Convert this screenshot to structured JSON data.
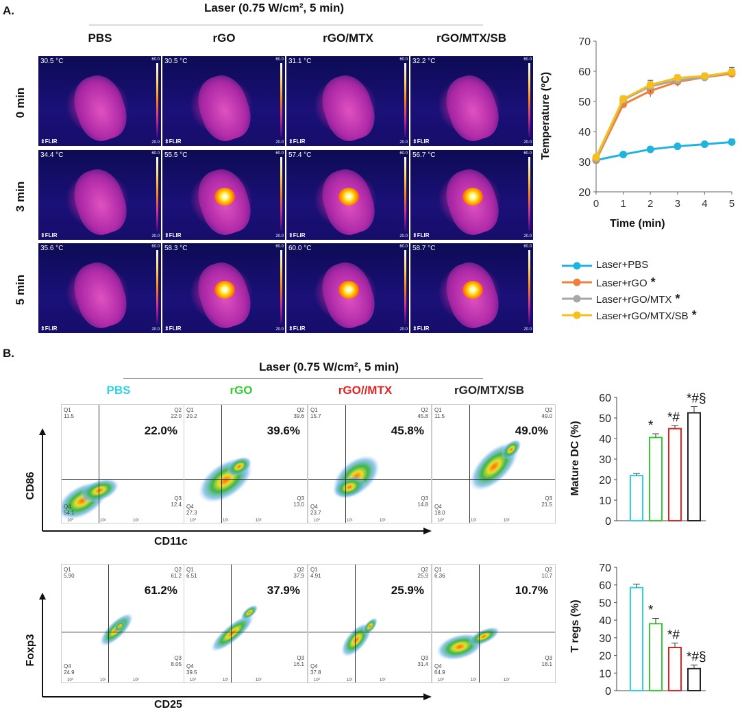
{
  "panelA": {
    "letter": "A.",
    "laser": "Laser (0.75 W/cm², 5 min)",
    "columns": [
      "PBS",
      "rGO",
      "rGO/MTX",
      "rGO/MTX/SB"
    ],
    "rows": [
      "0 min",
      "3 min",
      "5 min"
    ],
    "temps": [
      [
        "30.5",
        "30.5",
        "31.1",
        "32.2"
      ],
      [
        "34.4",
        "55.5",
        "57.4",
        "56.7"
      ],
      [
        "35.6",
        "58.3",
        "60.0",
        "58.7"
      ]
    ],
    "unit": "°C",
    "scale_max": "60.0",
    "scale_min": "20.0",
    "flir": "FLIR"
  },
  "panelB": {
    "letter": "B.",
    "laser": "Laser (0.75 W/cm², 5 min)",
    "columns": [
      "PBS",
      "rGO",
      "rGO//MTX",
      "rGO/MTX/SB"
    ],
    "column_colors": [
      "#2fd3e6",
      "#33cc33",
      "#e52222",
      "#222222"
    ],
    "top_row": {
      "ylabel": "CD86",
      "xlabel": "CD11c",
      "plots": [
        {
          "q1": "11.5",
          "q2": "22.0",
          "q3": "12.4",
          "q4": "54.1",
          "pct": "22.0%"
        },
        {
          "q1": "20.2",
          "q2": "39.6",
          "q3": "13.0",
          "q4": "27.3",
          "pct": "39.6%"
        },
        {
          "q1": "15.7",
          "q2": "45.8",
          "q3": "14.8",
          "q4": "23.7",
          "pct": "45.8%"
        },
        {
          "q1": "11.5",
          "q2": "49.0",
          "q3": "21.5",
          "q4": "18.0",
          "pct": "49.0%"
        }
      ]
    },
    "bottom_row": {
      "ylabel": "Foxp3",
      "xlabel": "CD25",
      "plots": [
        {
          "q1": "5.90",
          "q2": "61.2",
          "q3": "8.05",
          "q4": "24.9",
          "pct": "61.2%"
        },
        {
          "q1": "6.51",
          "q2": "37.9",
          "q3": "16.1",
          "q4": "39.5",
          "pct": "37.9%"
        },
        {
          "q1": "4.91",
          "q2": "25.9",
          "q3": "31.4",
          "q4": "37.8",
          "pct": "25.9%"
        },
        {
          "q1": "6.36",
          "q2": "10.7",
          "q3": "18.1",
          "q4": "64.9",
          "pct": "10.7%"
        }
      ]
    },
    "q_labels": [
      "Q1",
      "Q2",
      "Q3",
      "Q4"
    ],
    "log_ticks": [
      "10⁰",
      "10¹",
      "10²"
    ]
  },
  "chart_data": [
    {
      "type": "line",
      "xlabel": "Time (min)",
      "ylabel": "Temperature (ºC)",
      "x": [
        0,
        1,
        2,
        3,
        4,
        5
      ],
      "xticks": [
        "0",
        "1",
        "2",
        "3",
        "4",
        "5"
      ],
      "yticks": [
        "20",
        "30",
        "40",
        "50",
        "60",
        "70"
      ],
      "ylim": [
        20,
        70
      ],
      "grid": false,
      "legend": "bottom-right, below plot",
      "series": [
        {
          "name": "Laser+PBS",
          "color": "#1fb4e0",
          "mark": "",
          "values": [
            30.5,
            32.4,
            34.1,
            35.1,
            35.8,
            36.5
          ],
          "err": [
            0.6,
            0.6,
            0.6,
            0.6,
            0.6,
            1.0
          ]
        },
        {
          "name": "Laser+rGO",
          "color": "#f07f3c",
          "mark": "*",
          "values": [
            30.6,
            49.0,
            53.5,
            56.5,
            58.0,
            59.2
          ],
          "err": [
            0.6,
            1.2,
            2.0,
            1.5,
            1.0,
            1.2
          ]
        },
        {
          "name": "Laser+rGO/MTX",
          "color": "#a6a6a6",
          "mark": "*",
          "values": [
            31.0,
            50.5,
            55.0,
            57.0,
            58.0,
            59.8
          ],
          "err": [
            0.6,
            1.0,
            2.0,
            1.5,
            1.0,
            1.5
          ]
        },
        {
          "name": "Laser+rGO/MTX/SB",
          "color": "#f7bf1a",
          "mark": "*",
          "values": [
            31.5,
            50.8,
            55.5,
            57.8,
            58.4,
            59.7
          ],
          "err": [
            0.6,
            1.0,
            1.0,
            1.0,
            1.0,
            1.0
          ]
        }
      ]
    },
    {
      "type": "bar",
      "ylabel": "Mature DC (%)",
      "yticks": [
        "0",
        "10",
        "20",
        "30",
        "40",
        "50",
        "60"
      ],
      "ylim": [
        0,
        60
      ],
      "categories": [
        "PBS",
        "rGO",
        "rGO//MTX",
        "rGO/MTX/SB"
      ],
      "values": [
        22,
        40.5,
        44.8,
        52.5
      ],
      "err": [
        1.0,
        1.8,
        1.5,
        3.0
      ],
      "colors": [
        "#2fd3e6",
        "#33cc33",
        "#e52222",
        "#222222"
      ],
      "annotations": [
        "",
        "*",
        "*#",
        "*#§"
      ]
    },
    {
      "type": "bar",
      "ylabel": "T regs (%)",
      "yticks": [
        "0",
        "10",
        "20",
        "30",
        "40",
        "50",
        "60",
        "70"
      ],
      "ylim": [
        0,
        70
      ],
      "categories": [
        "PBS",
        "rGO",
        "rGO//MTX",
        "rGO/MTX/SB"
      ],
      "values": [
        58.5,
        38,
        24.5,
        12.5
      ],
      "err": [
        2.0,
        3.0,
        2.5,
        2.0
      ],
      "colors": [
        "#2fd3e6",
        "#33cc33",
        "#e52222",
        "#222222"
      ],
      "annotations": [
        "",
        "*",
        "*#",
        "*#§"
      ]
    }
  ]
}
